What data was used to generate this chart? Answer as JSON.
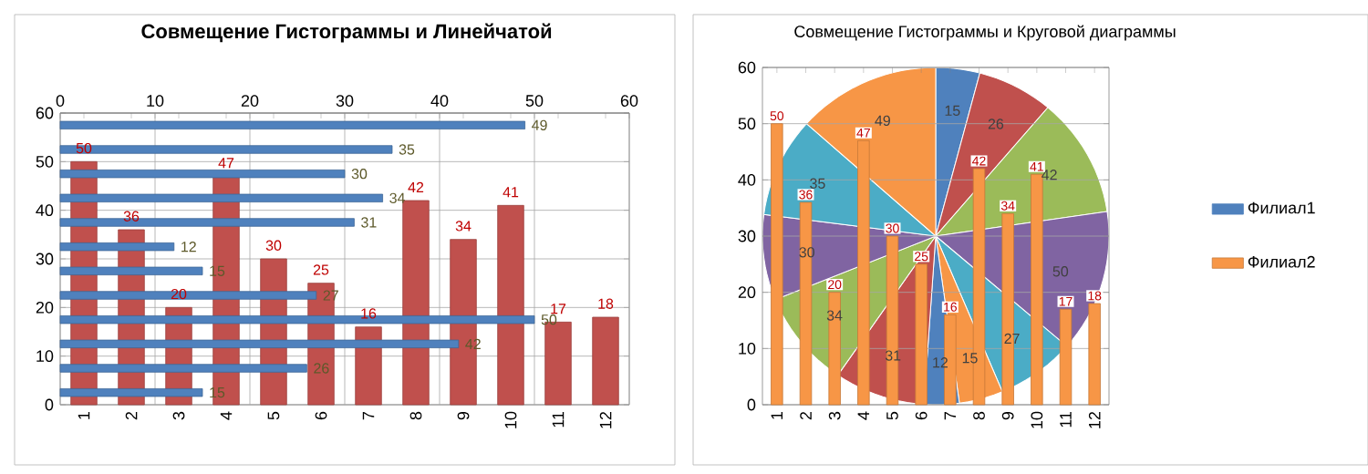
{
  "chart_data": [
    {
      "type": "bar",
      "title": "Совмещение Гистограммы и Линейчатой",
      "categories": [
        "1",
        "2",
        "3",
        "4",
        "5",
        "6",
        "7",
        "8",
        "9",
        "10",
        "11",
        "12"
      ],
      "series": [
        {
          "color": "#c0504d",
          "values": [
            50,
            36,
            20,
            47,
            30,
            25,
            16,
            42,
            34,
            41,
            17,
            18
          ]
        }
      ],
      "ylim": [
        0,
        60
      ],
      "yticks": [
        0,
        10,
        20,
        30,
        40,
        50,
        60
      ],
      "grid": "y",
      "data_labels": true
    },
    {
      "type": "bar",
      "orientation": "horizontal",
      "categories": [
        null,
        null,
        null,
        null,
        null,
        null,
        null,
        null,
        null,
        null,
        null,
        null
      ],
      "series": [
        {
          "color": "#4f81bd",
          "values": [
            49,
            35,
            30,
            34,
            31,
            12,
            15,
            27,
            50,
            42,
            26,
            15
          ]
        }
      ],
      "xlim": [
        0,
        60
      ],
      "xticks": [
        0,
        10,
        20,
        30,
        40,
        50,
        60
      ],
      "grid": "x",
      "tick_labels": "x",
      "data_labels": true
    },
    {
      "type": "pie",
      "title": "Совмещение Гистограммы и Круговой диаграммы",
      "categories": [
        null,
        null,
        null,
        null,
        null,
        null,
        null,
        null,
        null,
        null,
        null,
        null
      ],
      "series": [
        {
          "name": "Филиал1",
          "values": [
            15,
            26,
            42,
            50,
            27,
            15,
            12,
            31,
            34,
            30,
            35,
            49
          ]
        }
      ],
      "colors": [
        "#4f81bd",
        "#c0504d",
        "#9bbb59",
        "#8064a2",
        "#4bacc6",
        "#f79646",
        "#4f81bd",
        "#c0504d",
        "#9bbb59",
        "#8064a2",
        "#4bacc6",
        "#f79646"
      ],
      "data_labels": true,
      "legend": "right"
    },
    {
      "type": "bar",
      "categories": [
        "1",
        "2",
        "3",
        "4",
        "5",
        "6",
        "7",
        "8",
        "9",
        "10",
        "11",
        "12"
      ],
      "series": [
        {
          "name": "Филиал2",
          "color": "#f79646",
          "values": [
            50,
            36,
            20,
            47,
            30,
            25,
            16,
            42,
            34,
            41,
            17,
            18
          ]
        }
      ],
      "ylim": [
        0,
        60
      ],
      "yticks": [
        0,
        10,
        20,
        30,
        40,
        50,
        60
      ],
      "grid": "y",
      "data_labels": true,
      "legend": "right"
    }
  ]
}
